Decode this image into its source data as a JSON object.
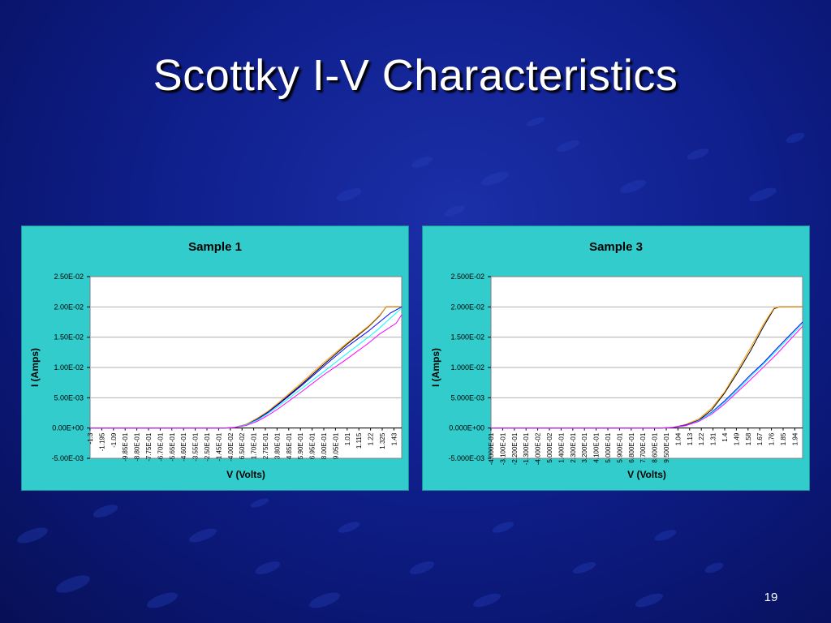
{
  "slide": {
    "title": "Scottky I-V Characteristics",
    "page_number": "19",
    "background_color": "#0f1f8c",
    "chart_area_color": "#33cccc"
  },
  "chart_data": [
    {
      "type": "line",
      "title": "Sample 1",
      "xlabel": "V (Volts)",
      "ylabel": "I (Amps)",
      "ylim": [
        -0.005,
        0.025
      ],
      "y_ticks": [
        "2.50E-02",
        "2.00E-02",
        "1.50E-02",
        "1.00E-02",
        "5.00E-03",
        "0.00E+00",
        "-5.00E-03"
      ],
      "y_tick_values": [
        0.025,
        0.02,
        0.015,
        0.01,
        0.005,
        0,
        -0.005
      ],
      "x_tick_labels": [
        "-1.3",
        "-1.195",
        "-1.09",
        "-9.85E-01",
        "-8.80E-01",
        "-7.75E-01",
        "-6.70E-01",
        "-5.65E-01",
        "-4.60E-01",
        "-3.55E-01",
        "-2.50E-01",
        "-1.45E-01",
        "-4.00E-02",
        "6.50E-02",
        "1.70E-01",
        "2.75E-01",
        "3.80E-01",
        "4.85E-01",
        "5.90E-01",
        "6.95E-01",
        "8.00E-01",
        "9.05E-01",
        "1.01",
        "1.115",
        "1.22",
        "1.325",
        "1.43"
      ],
      "x_tick_values": [
        -1.3,
        -1.195,
        -1.09,
        -0.985,
        -0.88,
        -0.775,
        -0.67,
        -0.565,
        -0.46,
        -0.355,
        -0.25,
        -0.145,
        -0.04,
        0.065,
        0.17,
        0.275,
        0.38,
        0.485,
        0.59,
        0.695,
        0.8,
        0.905,
        1.01,
        1.115,
        1.22,
        1.325,
        1.43
      ],
      "xlim": [
        -1.3,
        1.5
      ],
      "grid": "horizontal",
      "legend": "none",
      "series": [
        {
          "color": "#000000",
          "x": [
            -1.3,
            -0.1,
            0.0,
            0.1,
            0.2,
            0.3,
            0.4,
            0.6,
            0.8,
            1.0,
            1.2,
            1.3,
            1.36,
            1.5
          ],
          "y": [
            0,
            0,
            0.0001,
            0.0006,
            0.0015,
            0.0027,
            0.0041,
            0.0072,
            0.0105,
            0.0137,
            0.0167,
            0.0185,
            0.02,
            0.02
          ]
        },
        {
          "color": "#ff9900",
          "x": [
            -1.3,
            -0.1,
            0.0,
            0.1,
            0.2,
            0.3,
            0.4,
            0.6,
            0.8,
            1.0,
            1.2,
            1.3,
            1.36,
            1.5
          ],
          "y": [
            0,
            0,
            0.0001,
            0.0006,
            0.0016,
            0.0028,
            0.0043,
            0.0075,
            0.0108,
            0.0139,
            0.0168,
            0.0186,
            0.02,
            0.02
          ]
        },
        {
          "color": "#0000ff",
          "x": [
            -1.3,
            -0.1,
            0.0,
            0.1,
            0.2,
            0.3,
            0.4,
            0.6,
            0.8,
            1.0,
            1.2,
            1.3,
            1.4,
            1.5
          ],
          "y": [
            0,
            0,
            0.0001,
            0.0005,
            0.0014,
            0.0026,
            0.004,
            0.007,
            0.0102,
            0.0133,
            0.016,
            0.0175,
            0.019,
            0.02
          ]
        },
        {
          "color": "#00ffff",
          "x": [
            -1.3,
            -0.1,
            0.0,
            0.1,
            0.2,
            0.3,
            0.4,
            0.6,
            0.8,
            1.0,
            1.2,
            1.3,
            1.42,
            1.5
          ],
          "y": [
            0,
            0,
            0.0001,
            0.0005,
            0.0013,
            0.0024,
            0.0037,
            0.0065,
            0.0093,
            0.0122,
            0.015,
            0.0165,
            0.0185,
            0.0198
          ]
        },
        {
          "color": "#ff00ff",
          "x": [
            -1.3,
            -0.1,
            0.0,
            0.1,
            0.2,
            0.3,
            0.4,
            0.6,
            0.8,
            1.0,
            1.2,
            1.3,
            1.45,
            1.5
          ],
          "y": [
            0,
            0,
            0.0001,
            0.0004,
            0.0011,
            0.0021,
            0.0033,
            0.006,
            0.0088,
            0.0113,
            0.014,
            0.0155,
            0.0173,
            0.0187
          ]
        }
      ]
    },
    {
      "type": "line",
      "title": "Sample 3",
      "xlabel": "V (Volts)",
      "ylabel": "I (Amps)",
      "ylim": [
        -0.005,
        0.025
      ],
      "y_ticks": [
        "2.500E-02",
        "2.000E-02",
        "1.500E-02",
        "1.000E-02",
        "5.000E-03",
        "0.000E+00",
        "-5.000E-03"
      ],
      "y_tick_values": [
        0.025,
        0.02,
        0.015,
        0.01,
        0.005,
        0,
        -0.005
      ],
      "x_tick_labels": [
        "-4.000E-01",
        "-3.100E-01",
        "-2.200E-01",
        "-1.300E-01",
        "-4.000E-02",
        "5.000E-02",
        "1.400E-01",
        "2.300E-01",
        "3.200E-01",
        "4.100E-01",
        "5.000E-01",
        "5.900E-01",
        "6.800E-01",
        "7.700E-01",
        "8.600E-01",
        "9.500E-01",
        "1.04",
        "1.13",
        "1.22",
        "1.31",
        "1.4",
        "1.49",
        "1.58",
        "1.67",
        "1.76",
        "1.85",
        "1.94"
      ],
      "x_tick_values": [
        -0.4,
        -0.31,
        -0.22,
        -0.13,
        -0.04,
        0.05,
        0.14,
        0.23,
        0.32,
        0.41,
        0.5,
        0.59,
        0.68,
        0.77,
        0.86,
        0.95,
        1.04,
        1.13,
        1.22,
        1.31,
        1.4,
        1.49,
        1.58,
        1.67,
        1.76,
        1.85,
        1.94
      ],
      "xlim": [
        -0.4,
        2.0
      ],
      "grid": "horizontal",
      "legend": "none",
      "series": [
        {
          "color": "#000000",
          "x": [
            -0.4,
            0.9,
            1.0,
            1.1,
            1.2,
            1.3,
            1.4,
            1.5,
            1.6,
            1.7,
            1.78,
            1.82,
            2.0
          ],
          "y": [
            0,
            0,
            0.0001,
            0.0005,
            0.0013,
            0.003,
            0.0058,
            0.0092,
            0.0128,
            0.0168,
            0.0197,
            0.02,
            0.02
          ]
        },
        {
          "color": "#ff9900",
          "x": [
            -0.4,
            0.9,
            1.0,
            1.1,
            1.2,
            1.3,
            1.4,
            1.5,
            1.6,
            1.7,
            1.78,
            1.82,
            2.0
          ],
          "y": [
            0,
            0,
            0.0001,
            0.0006,
            0.0015,
            0.0033,
            0.006,
            0.0096,
            0.0133,
            0.0172,
            0.0198,
            0.02,
            0.02
          ]
        },
        {
          "color": "#0000ff",
          "x": [
            -0.4,
            0.9,
            1.0,
            1.1,
            1.2,
            1.3,
            1.4,
            1.5,
            1.6,
            1.7,
            1.8,
            1.9,
            2.0
          ],
          "y": [
            0,
            0,
            0.0001,
            0.0005,
            0.0012,
            0.0026,
            0.0045,
            0.0066,
            0.0088,
            0.0108,
            0.0131,
            0.0153,
            0.0175
          ]
        },
        {
          "color": "#00ffff",
          "x": [
            -0.4,
            0.9,
            1.0,
            1.1,
            1.2,
            1.3,
            1.4,
            1.5,
            1.6,
            1.7,
            1.8,
            1.9,
            2.0
          ],
          "y": [
            0,
            0,
            0.0001,
            0.0004,
            0.0012,
            0.0025,
            0.0043,
            0.0063,
            0.0085,
            0.0106,
            0.0128,
            0.015,
            0.0172
          ]
        },
        {
          "color": "#ff00ff",
          "x": [
            -0.4,
            0.9,
            1.0,
            1.1,
            1.2,
            1.3,
            1.4,
            1.5,
            1.6,
            1.7,
            1.8,
            1.9,
            2.0
          ],
          "y": [
            0,
            0,
            0.0001,
            0.0004,
            0.0011,
            0.0023,
            0.004,
            0.006,
            0.008,
            0.0101,
            0.0122,
            0.0145,
            0.0168
          ]
        }
      ]
    }
  ]
}
